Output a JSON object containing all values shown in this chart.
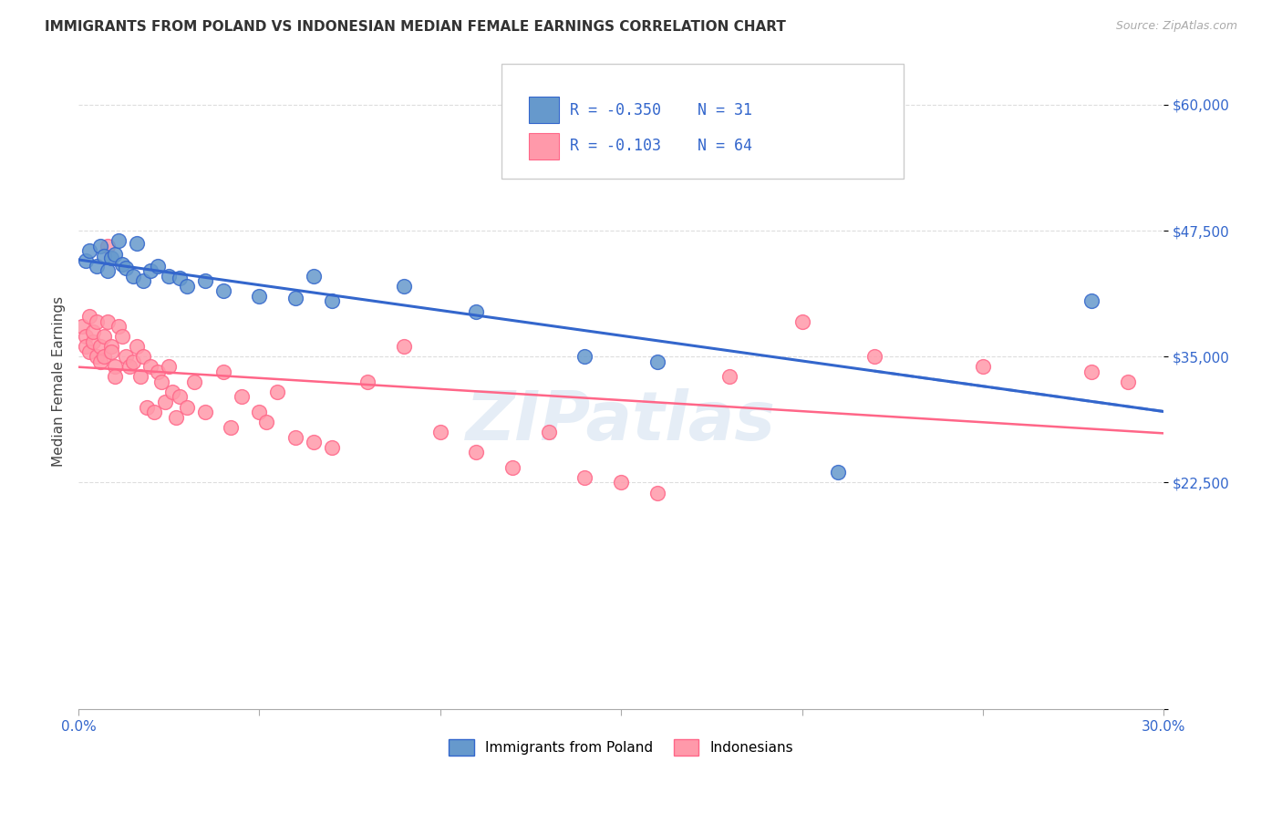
{
  "title": "IMMIGRANTS FROM POLAND VS INDONESIAN MEDIAN FEMALE EARNINGS CORRELATION CHART",
  "source": "Source: ZipAtlas.com",
  "ylabel": "Median Female Earnings",
  "yticks": [
    0,
    22500,
    35000,
    47500,
    60000
  ],
  "ytick_labels": [
    "",
    "$22,500",
    "$35,000",
    "$47,500",
    "$60,000"
  ],
  "xlim": [
    0.0,
    0.3
  ],
  "ylim": [
    15000,
    65000
  ],
  "legend_r1": "-0.350",
  "legend_n1": "31",
  "legend_r2": "-0.103",
  "legend_n2": "64",
  "color_poland": "#6699CC",
  "color_indonesia": "#FF99AA",
  "color_poland_line": "#3366CC",
  "color_indonesia_line": "#FF6688",
  "watermark": "ZIPatlas",
  "poland_scatter_x": [
    0.002,
    0.003,
    0.005,
    0.006,
    0.007,
    0.008,
    0.009,
    0.01,
    0.011,
    0.012,
    0.013,
    0.015,
    0.016,
    0.018,
    0.02,
    0.022,
    0.025,
    0.028,
    0.03,
    0.035,
    0.04,
    0.05,
    0.06,
    0.065,
    0.07,
    0.09,
    0.11,
    0.14,
    0.16,
    0.21,
    0.28
  ],
  "poland_scatter_y": [
    44500,
    45500,
    44000,
    46000,
    45000,
    43500,
    44800,
    45200,
    46500,
    44200,
    43800,
    43000,
    46200,
    42500,
    43500,
    44000,
    43000,
    42800,
    42000,
    42500,
    41500,
    41000,
    40800,
    43000,
    40500,
    42000,
    39500,
    35000,
    34500,
    23500,
    40500
  ],
  "indonesia_scatter_x": [
    0.001,
    0.002,
    0.002,
    0.003,
    0.003,
    0.004,
    0.004,
    0.005,
    0.005,
    0.006,
    0.006,
    0.007,
    0.007,
    0.008,
    0.008,
    0.009,
    0.009,
    0.01,
    0.01,
    0.011,
    0.012,
    0.013,
    0.014,
    0.015,
    0.016,
    0.017,
    0.018,
    0.019,
    0.02,
    0.021,
    0.022,
    0.023,
    0.024,
    0.025,
    0.026,
    0.027,
    0.028,
    0.03,
    0.032,
    0.035,
    0.04,
    0.042,
    0.045,
    0.05,
    0.052,
    0.055,
    0.06,
    0.065,
    0.07,
    0.08,
    0.09,
    0.1,
    0.11,
    0.12,
    0.13,
    0.14,
    0.15,
    0.16,
    0.18,
    0.2,
    0.22,
    0.25,
    0.28,
    0.29
  ],
  "indonesia_scatter_y": [
    38000,
    37000,
    36000,
    39000,
    35500,
    36500,
    37500,
    38500,
    35000,
    36000,
    34500,
    37000,
    35000,
    46000,
    38500,
    36000,
    35500,
    34000,
    33000,
    38000,
    37000,
    35000,
    34000,
    34500,
    36000,
    33000,
    35000,
    30000,
    34000,
    29500,
    33500,
    32500,
    30500,
    34000,
    31500,
    29000,
    31000,
    30000,
    32500,
    29500,
    33500,
    28000,
    31000,
    29500,
    28500,
    31500,
    27000,
    26500,
    26000,
    32500,
    36000,
    27500,
    25500,
    24000,
    27500,
    23000,
    22500,
    21500,
    33000,
    38500,
    35000,
    34000,
    33500,
    32500
  ],
  "background_color": "#FFFFFF",
  "grid_color": "#DDDDDD",
  "xtick_positions": [
    0.0,
    0.05,
    0.1,
    0.15,
    0.2,
    0.25,
    0.3
  ]
}
